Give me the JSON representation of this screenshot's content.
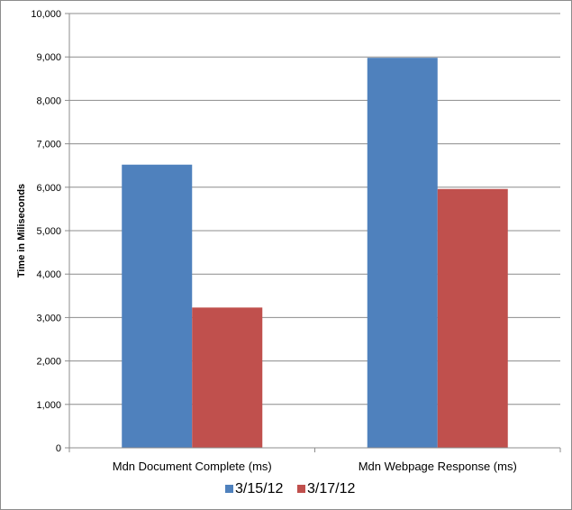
{
  "chart_data": {
    "type": "bar",
    "title": "",
    "xlabel": "",
    "ylabel": "Time in Miliseconds",
    "categories": [
      "Mdn Document Complete (ms)",
      "Mdn Webpage Response (ms)"
    ],
    "series": [
      {
        "name": "3/15/12",
        "color": "#4f81bd",
        "values": [
          6520,
          8980
        ]
      },
      {
        "name": "3/17/12",
        "color": "#c0504d",
        "values": [
          3230,
          5960
        ]
      }
    ],
    "ylim": [
      0,
      10000
    ],
    "yticks": [
      0,
      1000,
      2000,
      3000,
      4000,
      5000,
      6000,
      7000,
      8000,
      9000,
      10000
    ],
    "ytick_labels": [
      "0",
      "1,000",
      "2,000",
      "3,000",
      "4,000",
      "5,000",
      "6,000",
      "7,000",
      "8,000",
      "9,000",
      "10,000"
    ],
    "grid": true,
    "legend_position": "bottom"
  }
}
